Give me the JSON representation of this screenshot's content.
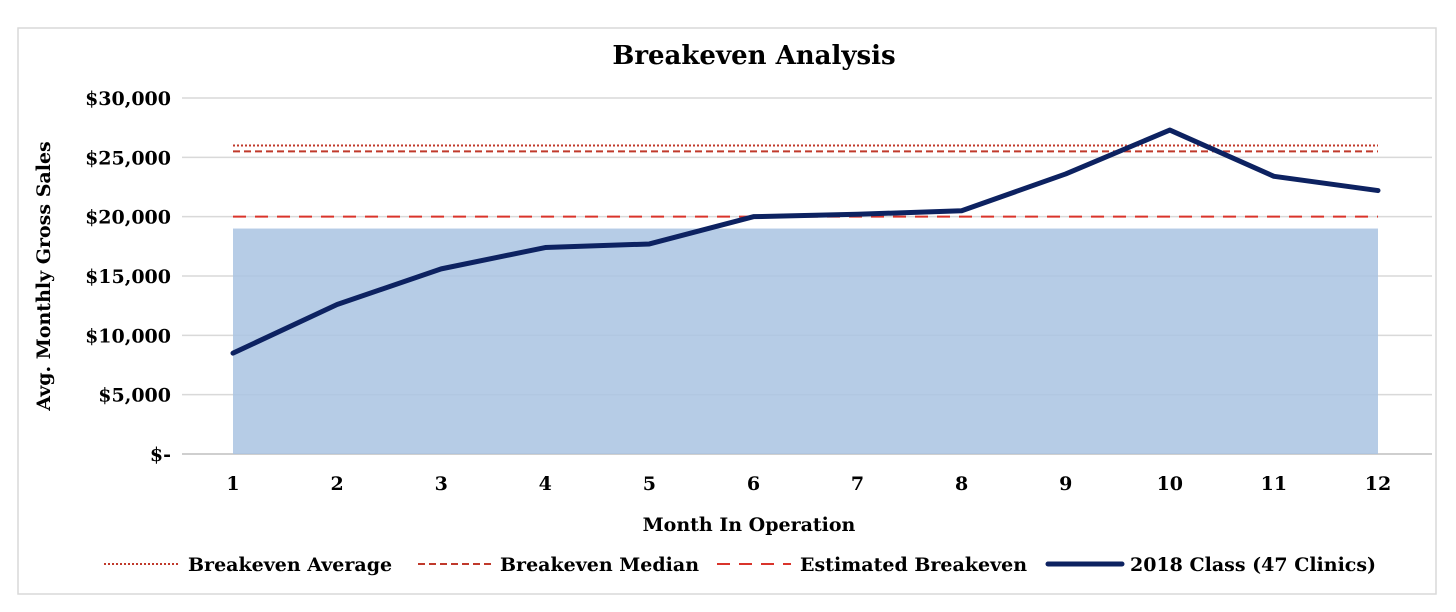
{
  "chart_data": {
    "type": "line",
    "title": "Breakeven Analysis",
    "xlabel": "Month In Operation",
    "ylabel": "Avg. Monthly Gross Sales",
    "x": [
      1,
      2,
      3,
      4,
      5,
      6,
      7,
      8,
      9,
      10,
      11,
      12
    ],
    "y_ticks": [
      0,
      5000,
      10000,
      15000,
      20000,
      25000,
      30000
    ],
    "y_tick_labels": [
      "$-",
      "$5,000",
      "$10,000",
      "$15,000",
      "$20,000",
      "$25,000",
      "$30,000"
    ],
    "ylim": [
      0,
      30000
    ],
    "grid": true,
    "legend_position": "bottom",
    "shaded_region": {
      "x_start": 1,
      "x_end": 12,
      "y_low": 0,
      "y_high": 19000,
      "color": "#a9c3e2"
    },
    "reference_lines": [
      {
        "name": "Breakeven Average",
        "value": 26000,
        "style": "dotted",
        "color": "#c0392b"
      },
      {
        "name": "Breakeven Median",
        "value": 25500,
        "style": "dashed",
        "color": "#c0392b"
      },
      {
        "name": "Estimated Breakeven",
        "value": 20000,
        "style": "long-dashed",
        "color": "#d9342b"
      }
    ],
    "series": [
      {
        "name": "2018 Class (47 Clinics)",
        "color": "#0d2261",
        "values": [
          8500,
          12600,
          15600,
          17400,
          17700,
          20000,
          20200,
          20500,
          23600,
          27300,
          23400,
          22200
        ]
      }
    ]
  }
}
